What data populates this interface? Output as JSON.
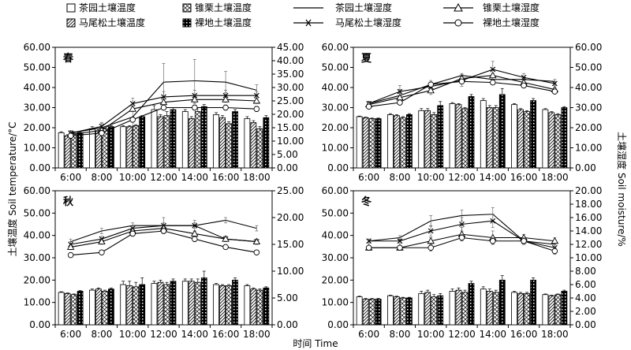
{
  "legend": {
    "tea_temp": "茶园土壤温度",
    "chestnut_temp": "锥栗土壤温度",
    "tea_moist": "茶园土壤湿度",
    "chestnut_moist": "锥栗土壤湿度",
    "pine_temp": "马尾松土壤温度",
    "bare_temp": "裸地土壤温度",
    "pine_moist": "马尾松土壤湿度",
    "bare_moist": "裸地土壤湿度"
  },
  "ylabel_left": "土壤温度 Soil temperature/°C",
  "ylabel_right": "土壤湿度 Soil moisture/%",
  "xlabel": "时间 Time",
  "chart_data": [
    {
      "type": "bar",
      "title": "春",
      "categories": [
        "6:00",
        "8:00",
        "10:00",
        "12:00",
        "14:00",
        "16:00",
        "18:00"
      ],
      "ylim_left": [
        0,
        60
      ],
      "yticks_left": [
        "0.00",
        "10.00",
        "20.00",
        "30.00",
        "40.00",
        "50.00",
        "60.00"
      ],
      "ylim_right": [
        0,
        45
      ],
      "yticks_right": [
        "0.00",
        "5.00",
        "10.00",
        "15.00",
        "20.00",
        "25.00",
        "30.00",
        "35.00",
        "40.00",
        "45.00"
      ],
      "temperature": [
        {
          "name": "茶园土壤温度",
          "values": [
            17.5,
            19.5,
            20.5,
            29,
            28,
            26.5,
            24.5
          ],
          "err": [
            0.5,
            1,
            0.5,
            2,
            1,
            1,
            1
          ]
        },
        {
          "name": "马尾松土壤温度",
          "values": [
            16,
            18.5,
            20.5,
            25.5,
            24.5,
            25,
            22.5
          ],
          "err": [
            0.5,
            0.5,
            0.5,
            1,
            1,
            1,
            1
          ]
        },
        {
          "name": "锥栗土壤温度",
          "values": [
            17,
            19.5,
            21,
            26,
            28,
            22,
            19.5
          ],
          "err": [
            1,
            0.5,
            0.5,
            2,
            2,
            1,
            1
          ]
        },
        {
          "name": "裸地土壤温度",
          "values": [
            17.5,
            20.5,
            25.5,
            29,
            30.5,
            28,
            25
          ],
          "err": [
            0.5,
            0.5,
            0.5,
            1,
            1,
            1,
            1
          ]
        }
      ],
      "moisture": [
        {
          "name": "茶园土壤湿度",
          "values": [
            13,
            15,
            19,
            32,
            32.5,
            32,
            29
          ],
          "err": [
            1,
            2,
            4,
            7,
            8,
            4,
            2
          ]
        },
        {
          "name": "马尾松土壤湿度",
          "values": [
            13,
            15.5,
            24,
            26.5,
            27,
            27,
            27
          ],
          "err": [
            0.5,
            1,
            2,
            2,
            2,
            2,
            1.5
          ]
        },
        {
          "name": "锥栗土壤湿度",
          "values": [
            12.5,
            14,
            22,
            24.5,
            25.5,
            25.5,
            25
          ],
          "err": [
            0.5,
            1,
            1,
            1,
            1.5,
            1,
            1
          ]
        },
        {
          "name": "裸地土壤湿度",
          "values": [
            12,
            13,
            18,
            22.5,
            22.5,
            22.5,
            22
          ],
          "err": [
            0.5,
            1,
            1,
            1,
            1,
            1,
            1
          ]
        }
      ]
    },
    {
      "type": "bar",
      "title": "夏",
      "categories": [
        "6:00",
        "8:00",
        "10:00",
        "12:00",
        "14:00",
        "16:00",
        "18:00"
      ],
      "ylim_left": [
        0,
        60
      ],
      "yticks_left": [
        "0.00",
        "10.00",
        "20.00",
        "30.00",
        "40.00",
        "50.00",
        "60.00"
      ],
      "ylim_right": [
        0,
        60
      ],
      "yticks_right": [
        "0.00",
        "10.00",
        "20.00",
        "30.00",
        "40.00",
        "50.00",
        "60.00"
      ],
      "temperature": [
        {
          "name": "茶园土壤温度",
          "values": [
            25.5,
            26.5,
            28.5,
            32,
            33.5,
            31.5,
            29
          ],
          "err": [
            0.3,
            0.5,
            1,
            0.5,
            1,
            0.5,
            0.5
          ]
        },
        {
          "name": "马尾松土壤温度",
          "values": [
            25,
            26,
            28.5,
            31.5,
            30,
            29,
            27.5
          ],
          "err": [
            0.3,
            0.5,
            1,
            0.5,
            1,
            0.5,
            0.5
          ]
        },
        {
          "name": "锥栗土壤温度",
          "values": [
            24.5,
            25,
            26.5,
            29.5,
            30,
            28,
            26.5
          ],
          "err": [
            0.3,
            0.5,
            1,
            0.5,
            1,
            0.5,
            0.5
          ]
        },
        {
          "name": "裸地土壤温度",
          "values": [
            24.5,
            26.5,
            31,
            35.5,
            36.5,
            33.5,
            30
          ],
          "err": [
            0.3,
            0.5,
            2,
            1,
            3,
            1,
            0.5
          ]
        }
      ],
      "moisture": [
        {
          "name": "茶园土壤湿度",
          "values": [
            32,
            36,
            41.5,
            46,
            44,
            44,
            43
          ],
          "err": [
            1,
            3,
            2,
            1,
            1,
            1,
            1
          ]
        },
        {
          "name": "马尾松土壤湿度",
          "values": [
            32,
            38,
            40.5,
            43.5,
            49,
            45,
            42
          ],
          "err": [
            1,
            3,
            2,
            3,
            4,
            2,
            1
          ]
        },
        {
          "name": "锥栗土壤湿度",
          "values": [
            31.5,
            35,
            38.5,
            44.5,
            46,
            42.5,
            39
          ],
          "err": [
            1,
            2,
            2,
            1,
            1,
            1,
            1
          ]
        },
        {
          "name": "裸地土壤湿度",
          "values": [
            30.5,
            32.5,
            41.5,
            43,
            42.5,
            41,
            38
          ],
          "err": [
            0.5,
            1,
            1,
            1,
            1,
            1,
            1
          ]
        }
      ]
    },
    {
      "type": "bar",
      "title": "秋",
      "categories": [
        "6:00",
        "8:00",
        "10:00",
        "12:00",
        "14:00",
        "16:00",
        "18:00"
      ],
      "ylim_left": [
        0,
        60
      ],
      "yticks_left": [
        "0.00",
        "10.00",
        "20.00",
        "30.00",
        "40.00",
        "50.00",
        "60.00"
      ],
      "ylim_right": [
        0,
        25
      ],
      "yticks_right": [
        "0.00",
        "5.00",
        "10.00",
        "15.00",
        "20.00",
        "25.00"
      ],
      "temperature": [
        {
          "name": "茶园土壤温度",
          "values": [
            14.5,
            15.5,
            18,
            18.5,
            19.5,
            18,
            17.5
          ],
          "err": [
            0.3,
            0.5,
            1.5,
            1,
            1,
            0.5,
            0.5
          ]
        },
        {
          "name": "马尾松土壤温度",
          "values": [
            14,
            16,
            17.5,
            19,
            19.5,
            17.5,
            16
          ],
          "err": [
            0.3,
            0.5,
            2,
            1,
            1,
            0.5,
            0.5
          ]
        },
        {
          "name": "锥栗土壤温度",
          "values": [
            13.5,
            15,
            17,
            18,
            19,
            17.5,
            15.5
          ],
          "err": [
            0.3,
            0.5,
            2,
            1,
            1.5,
            0.5,
            0.5
          ]
        },
        {
          "name": "裸地土壤温度",
          "values": [
            15,
            16,
            18,
            19.5,
            21,
            20,
            16.5
          ],
          "err": [
            0.3,
            0.5,
            3,
            1,
            3,
            1,
            0.5
          ]
        }
      ],
      "moisture": [
        {
          "name": "茶园土壤湿度",
          "values": [
            15.5,
            17.5,
            18.5,
            18.5,
            18.5,
            19.5,
            18
          ],
          "err": [
            0.5,
            0.5,
            0.5,
            0.5,
            0.5,
            0.5,
            0.5
          ]
        },
        {
          "name": "马尾松土壤湿度",
          "values": [
            15,
            16,
            18,
            18.5,
            18.5,
            16,
            15.5
          ],
          "err": [
            0.5,
            0.5,
            0.5,
            1.5,
            1,
            0.5,
            0.5
          ]
        },
        {
          "name": "锥栗土壤湿度",
          "values": [
            14.5,
            15.5,
            17.5,
            18,
            17,
            16,
            15.5
          ],
          "err": [
            0.5,
            0.5,
            0.5,
            0.5,
            0.5,
            0.5,
            0.5
          ]
        },
        {
          "name": "裸地土壤湿度",
          "values": [
            13,
            13.5,
            17,
            17.5,
            16,
            14.5,
            13.5
          ],
          "err": [
            0.3,
            0.3,
            0.5,
            0.5,
            0.5,
            0.3,
            0.3
          ]
        }
      ]
    },
    {
      "type": "bar",
      "title": "冬",
      "categories": [
        "6:00",
        "8:00",
        "10:00",
        "12:00",
        "14:00",
        "16:00",
        "18:00"
      ],
      "ylim_left": [
        0,
        60
      ],
      "yticks_left": [
        "0.00",
        "10.00",
        "20.00",
        "30.00",
        "40.00",
        "50.00",
        "60.00"
      ],
      "ylim_right": [
        0,
        20
      ],
      "yticks_right": [
        "0.00",
        "2.00",
        "4.00",
        "6.00",
        "8.00",
        "10.00",
        "12.00",
        "14.00",
        "16.00",
        "18.00",
        "20.00"
      ],
      "temperature": [
        {
          "name": "茶园土壤温度",
          "values": [
            12.5,
            13,
            14,
            15,
            16,
            14.5,
            13.5
          ],
          "err": [
            0.3,
            0.3,
            1,
            1,
            1,
            0.5,
            0.3
          ]
        },
        {
          "name": "马尾松土壤温度",
          "values": [
            11.5,
            12.5,
            14.5,
            15.5,
            15,
            14,
            13
          ],
          "err": [
            0.3,
            0.3,
            1,
            1,
            1,
            0.5,
            0.3
          ]
        },
        {
          "name": "锥栗土壤温度",
          "values": [
            11.5,
            12,
            12.5,
            14.5,
            14.5,
            14,
            13.5
          ],
          "err": [
            0.3,
            0.3,
            1,
            1,
            1,
            0.5,
            0.3
          ]
        },
        {
          "name": "裸地土壤温度",
          "values": [
            11.5,
            12,
            13,
            18.5,
            20,
            20,
            15
          ],
          "err": [
            0.3,
            0.3,
            1,
            1,
            2,
            1,
            0.5
          ]
        }
      ],
      "moisture": [
        {
          "name": "茶园土壤湿度",
          "values": [
            12.5,
            13,
            15.5,
            16.3,
            16.5,
            12.5,
            12
          ],
          "err": [
            0.3,
            0.3,
            0.8,
            0.8,
            1,
            0.5,
            0.5
          ]
        },
        {
          "name": "马尾松土壤湿度",
          "values": [
            12.5,
            12.5,
            14,
            15,
            15.5,
            12.5,
            11.5
          ],
          "err": [
            0.3,
            0.3,
            0.8,
            1,
            1,
            0.5,
            0.5
          ]
        },
        {
          "name": "锥栗土壤湿度",
          "values": [
            11.5,
            11.5,
            12.5,
            13.5,
            13,
            13,
            12.5
          ],
          "err": [
            0.3,
            0.3,
            0.5,
            1,
            1,
            0.5,
            0.5
          ]
        },
        {
          "name": "裸地土壤湿度",
          "values": [
            11.5,
            11.5,
            11.5,
            13,
            12.5,
            12.5,
            11
          ],
          "err": [
            0.3,
            0.3,
            0.5,
            0.5,
            0.5,
            0.5,
            0.5
          ]
        }
      ]
    }
  ]
}
